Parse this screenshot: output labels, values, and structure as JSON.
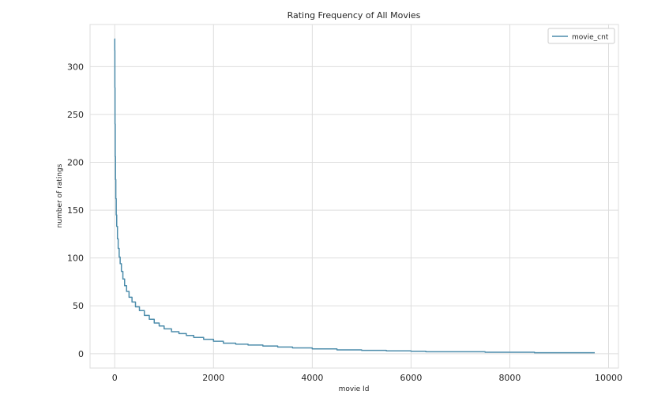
{
  "chart_data": {
    "type": "line",
    "title": "Rating Frequency of All Movies",
    "xlabel": "movie Id",
    "ylabel": "number of ratings",
    "xlim": [
      -500,
      10200
    ],
    "ylim": [
      -15,
      344
    ],
    "xticks": [
      0,
      2000,
      4000,
      6000,
      8000,
      10000
    ],
    "yticks": [
      0,
      50,
      100,
      150,
      200,
      250,
      300
    ],
    "grid": true,
    "legend_position": "top-right",
    "series": [
      {
        "name": "movie_cnt",
        "color": "#4c8cab",
        "x": [
          0,
          1,
          3,
          6,
          10,
          15,
          22,
          30,
          40,
          55,
          70,
          90,
          110,
          135,
          165,
          200,
          240,
          290,
          350,
          420,
          500,
          600,
          700,
          800,
          900,
          1000,
          1150,
          1300,
          1450,
          1600,
          1800,
          2000,
          2200,
          2450,
          2700,
          3000,
          3300,
          3600,
          4000,
          4500,
          5000,
          5500,
          6000,
          6300,
          6600,
          7000,
          7500,
          8000,
          8500,
          9000,
          9500,
          9720
        ],
        "y": [
          329,
          317,
          278,
          240,
          206,
          182,
          162,
          145,
          133,
          120,
          110,
          101,
          94,
          86,
          78,
          71,
          65,
          59,
          54,
          49,
          45,
          40,
          36,
          32,
          29,
          26,
          23,
          21,
          19,
          17,
          15,
          13,
          11,
          10,
          9,
          8,
          7,
          6,
          5,
          4,
          3.5,
          3,
          2.5,
          2,
          2,
          2,
          1.5,
          1.5,
          1,
          1,
          1,
          1
        ]
      }
    ]
  }
}
